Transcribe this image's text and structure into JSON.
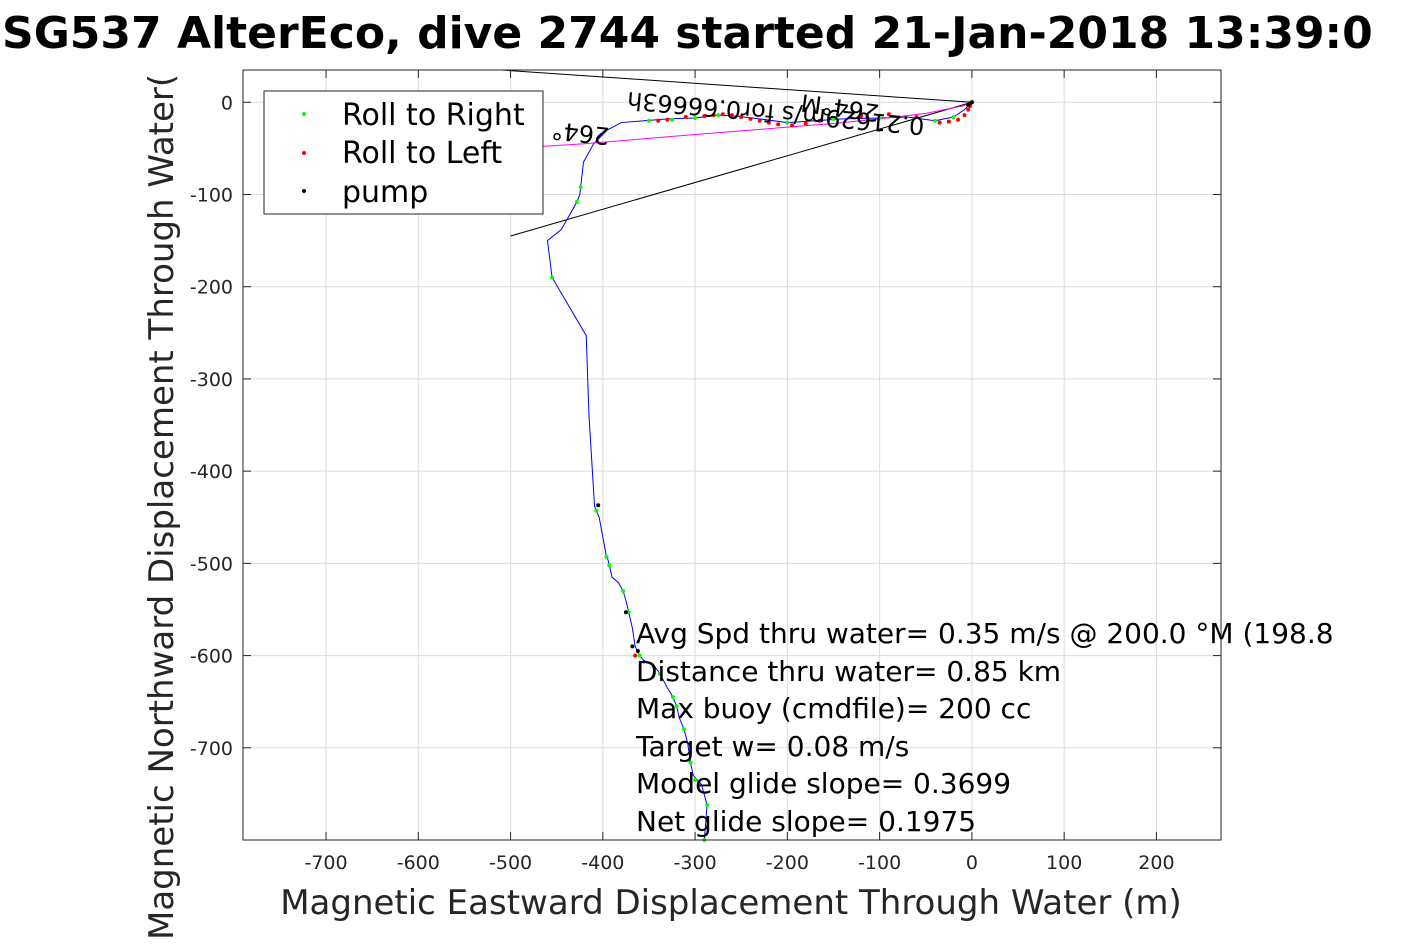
{
  "chart_data": {
    "type": "line",
    "title": "SG537 AlterEco, dive 2744 started 21-Jan-2018 13:39:0",
    "xlabel": "Magnetic Eastward Displacement Through Water (m)",
    "ylabel": "Magnetic Northward Displacement Through Water(",
    "xlim": [
      -790,
      270
    ],
    "ylim": [
      -800,
      35
    ],
    "xticks": [
      -700,
      -600,
      -500,
      -400,
      -300,
      -200,
      -100,
      0,
      100,
      200
    ],
    "yticks": [
      0,
      -100,
      -200,
      -300,
      -400,
      -500,
      -600,
      -700
    ],
    "xtick_labels": [
      "-700",
      "-600",
      "-500",
      "-400",
      "-300",
      "-200",
      "-100",
      "0",
      "100",
      "200"
    ],
    "ytick_labels": [
      "0",
      "-100",
      "-200",
      "-300",
      "-400",
      "-500",
      "-600",
      "-700"
    ],
    "grid": true,
    "legend": {
      "placement": "top-left",
      "entries": [
        {
          "label": "Roll to Right",
          "color": "#00ff00"
        },
        {
          "label": "Roll to Left",
          "color": "#ff0000"
        },
        {
          "label": "pump",
          "color": "#000000"
        }
      ]
    },
    "series": [
      {
        "color": "#0000ff",
        "x": [
          -290,
          -287,
          -293,
          -302,
          -305,
          -308,
          -312,
          -317,
          -320,
          -324,
          -330,
          -338,
          -345,
          -356,
          -360,
          -365,
          -368,
          -372,
          -375,
          -378,
          -383,
          -390,
          -393,
          -395,
          -396,
          -404,
          -407,
          -409,
          -415,
          -418,
          -455,
          -460,
          -445,
          -428,
          -425,
          -424,
          -421,
          -410,
          -395,
          -380,
          -355,
          -330,
          -300,
          -275,
          -255,
          -230,
          -200,
          -170,
          -140,
          -100,
          -70,
          -40,
          -20,
          -8,
          0
        ],
        "y": [
          -800,
          -762,
          -740,
          -730,
          -716,
          -695,
          -680,
          -668,
          -655,
          -645,
          -635,
          -620,
          -610,
          -605,
          -600,
          -590,
          -570,
          -553,
          -540,
          -530,
          -521,
          -515,
          -502,
          -494,
          -493,
          -450,
          -443,
          -438,
          -340,
          -253,
          -190,
          -150,
          -138,
          -108,
          -100,
          -92,
          -65,
          -45,
          -30,
          -22,
          -20,
          -18,
          -17,
          -14,
          -15,
          -18,
          -22,
          -20,
          -18,
          -17,
          -16,
          -20,
          -16,
          -8,
          0
        ]
      },
      {
        "color": "#ff00ff",
        "x": [
          -467,
          -420,
          -360,
          -300,
          -250,
          -200,
          -150,
          -100,
          -50,
          -10,
          0
        ],
        "y": [
          -48,
          -45,
          -40,
          -35,
          -31,
          -27,
          -23,
          -18,
          -12,
          -4,
          0
        ]
      }
    ],
    "black_lines": [
      {
        "x": [
          -510,
          0
        ],
        "y": [
          35,
          0
        ]
      },
      {
        "x": [
          -500,
          0
        ],
        "y": [
          -145,
          0
        ]
      }
    ],
    "roll_right_points": {
      "x": [
        -290,
        -287,
        -300,
        -305,
        -312,
        -320,
        -324,
        -338,
        -360,
        -372,
        -378,
        -393,
        -396,
        -407,
        -455,
        -428,
        -424,
        -300,
        -275,
        -200,
        -150,
        -100,
        -40,
        -20,
        -350,
        -325,
        -250
      ],
      "y": [
        -800,
        -762,
        -735,
        -716,
        -680,
        -655,
        -645,
        -620,
        -600,
        -553,
        -530,
        -502,
        -493,
        -443,
        -190,
        -108,
        -92,
        -17,
        -14,
        -22,
        -18,
        -17,
        -20,
        -16,
        -20,
        -19,
        -16
      ]
    },
    "roll_left_points": {
      "x": [
        -365,
        -310,
        -290,
        -280,
        -270,
        -260,
        -250,
        -240,
        -230,
        -220,
        -210,
        -195,
        -180,
        -165,
        -120,
        -90,
        -60,
        -35,
        -25,
        -15,
        -8,
        -4,
        -2,
        0,
        -330,
        -340
      ],
      "y": [
        -600,
        -16,
        -15,
        -14,
        -13,
        -14,
        -16,
        -18,
        -20,
        -22,
        -24,
        -25,
        -23,
        -20,
        -15,
        -13,
        -16,
        -22,
        -21,
        -19,
        -14,
        -8,
        -4,
        0,
        -19,
        -20
      ]
    },
    "pump_points": {
      "x": [
        -368,
        -375,
        -362,
        -405,
        -4,
        -2,
        0
      ],
      "y": [
        -590,
        -553,
        -595,
        -437,
        -3,
        -1,
        0
      ]
    },
    "rotated_labels": [
      "264°M",
      "0.21629m/s for0.66663h",
      "264°"
    ],
    "annotations": [
      "Avg Spd thru water=  0.35 m/s @ 200.0 °M (198.8",
      "Distance thru water=  0.85 km",
      "Max buoy (cmdfile)= 200 cc",
      "Target w= 0.08 m/s",
      "Model glide slope= 0.3699",
      "Net glide slope= 0.1975"
    ]
  }
}
